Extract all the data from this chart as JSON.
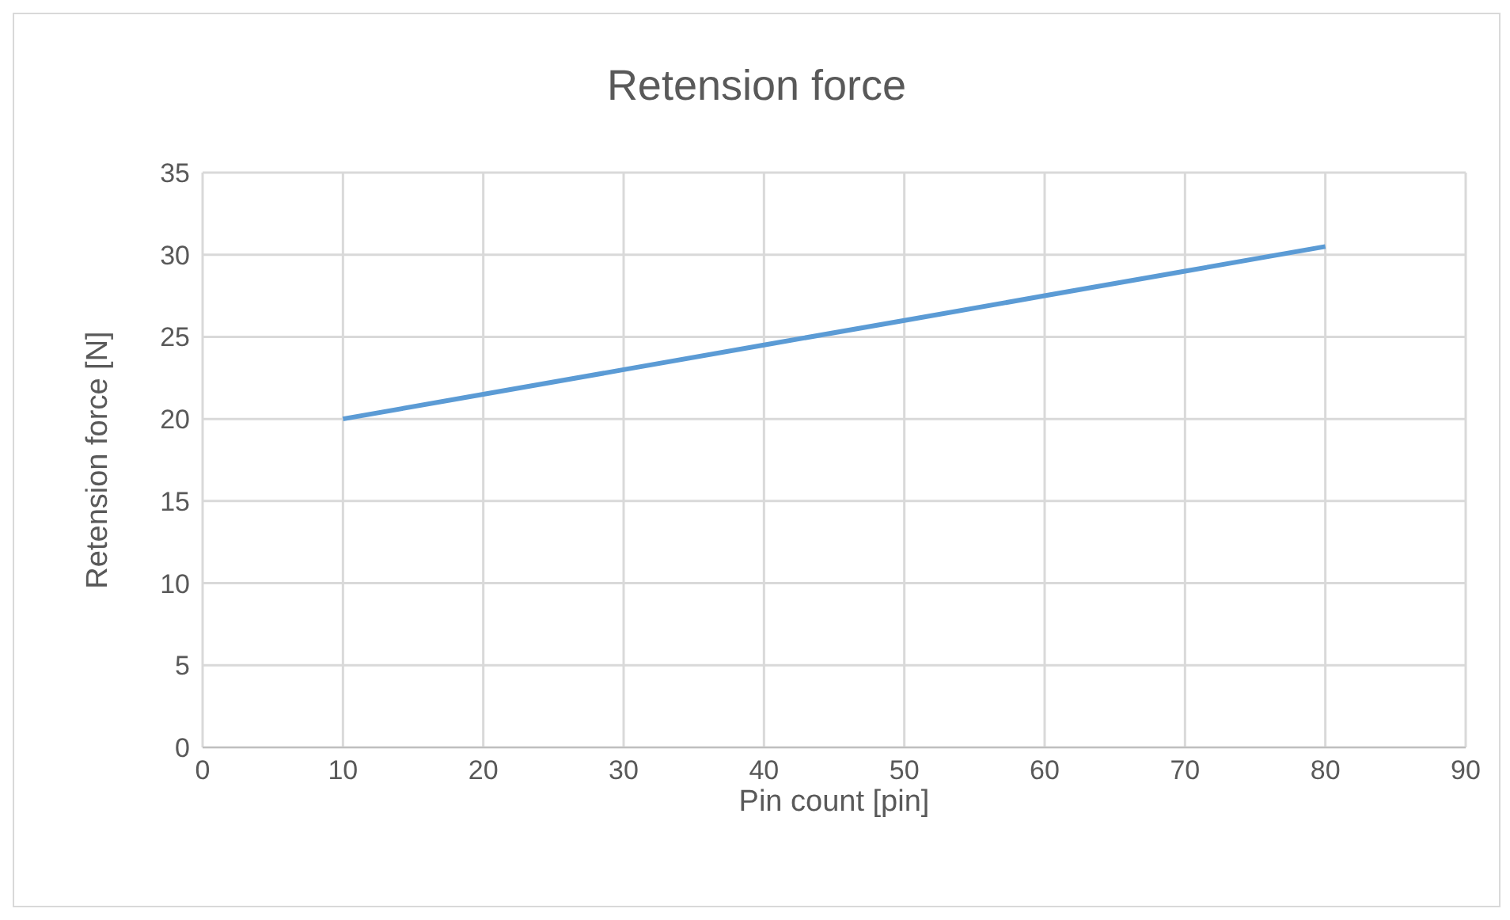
{
  "chart_data": {
    "type": "line",
    "title": "Retension force",
    "xlabel": "Pin count [pin]",
    "ylabel": "Retension force [N]",
    "x": [
      10,
      20,
      30,
      40,
      50,
      60,
      70,
      80
    ],
    "series": [
      {
        "color": "#5b9bd5",
        "values": [
          20,
          21.5,
          23,
          24.5,
          26,
          27.5,
          29,
          30.5
        ]
      }
    ],
    "xlim": [
      0,
      90
    ],
    "xticks": [
      0,
      10,
      20,
      30,
      40,
      50,
      60,
      70,
      80,
      90
    ],
    "ylim": [
      0,
      35
    ],
    "yticks": [
      0,
      5,
      10,
      15,
      20,
      25,
      30,
      35
    ],
    "grid": true,
    "legend": false,
    "marker": "none",
    "line_style": "solid"
  }
}
